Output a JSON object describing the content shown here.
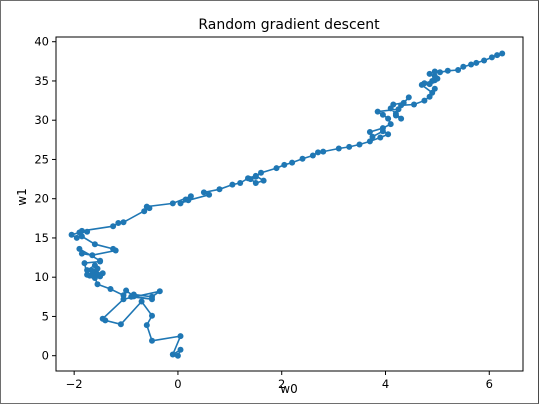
{
  "chart_data": {
    "type": "line",
    "title": "Random gradient descent",
    "xlabel": "w0",
    "ylabel": "w1",
    "xlim": [
      -2.35,
      6.65
    ],
    "ylim": [
      -1.95,
      40.6
    ],
    "xticks": [
      -2,
      0,
      2,
      4,
      6
    ],
    "yticks": [
      0,
      5,
      10,
      15,
      20,
      25,
      30,
      35,
      40
    ],
    "grid": false,
    "marker": "circle",
    "series": [
      {
        "color": "#1f77b4",
        "x": [
          0.0,
          0.05,
          -0.1,
          0.05,
          -0.5,
          -0.6,
          -0.5,
          -0.7,
          -1.1,
          -1.4,
          -1.45,
          -1.05,
          -0.35,
          -0.5,
          -0.85,
          -0.9,
          -0.5,
          -0.85,
          -1.0,
          -1.05,
          -1.3,
          -1.55,
          -1.6,
          -1.7,
          -1.6,
          -1.55,
          -1.45,
          -1.5,
          -1.65,
          -1.65,
          -1.55,
          -1.6,
          -1.75,
          -1.75,
          -1.8,
          -1.5,
          -1.5,
          -1.9,
          -1.85,
          -1.65,
          -1.2,
          -1.25,
          -1.6,
          -1.85,
          -1.95,
          -2.05,
          -1.9,
          -1.75,
          -1.85,
          -1.25,
          -1.15,
          -1.05,
          -0.55,
          -0.65,
          -0.6,
          -0.1,
          0.25,
          0.15,
          0.05,
          0.2,
          0.6,
          0.5,
          0.8,
          1.05,
          1.2,
          1.35,
          1.5,
          1.65,
          1.5,
          1.4,
          1.5,
          1.6,
          1.9,
          2.05,
          2.2,
          2.4,
          2.6,
          2.7,
          2.8,
          3.1,
          3.3,
          3.5,
          3.7,
          3.9,
          4.05,
          3.95,
          3.75,
          3.7,
          3.95,
          4.1,
          4.05,
          3.95,
          3.85,
          4.25,
          4.2,
          4.3,
          4.2,
          4.1,
          4.15,
          4.35,
          4.45,
          4.3,
          4.55,
          4.75,
          4.85,
          4.95,
          4.9,
          4.7,
          4.75,
          4.95,
          5.0,
          4.9,
          4.85,
          4.95,
          4.85,
          4.95,
          5.05,
          5.2,
          5.4,
          5.5,
          5.65,
          5.75,
          5.9,
          6.05,
          6.15,
          6.25
        ],
        "y": [
          0.0,
          0.75,
          0.15,
          2.5,
          1.9,
          3.9,
          5.1,
          6.9,
          4.0,
          4.5,
          4.7,
          7.2,
          8.2,
          7.5,
          7.8,
          7.5,
          7.2,
          7.55,
          8.3,
          7.7,
          8.5,
          9.1,
          9.9,
          10.2,
          10.6,
          10.4,
          10.5,
          10.1,
          10.2,
          10.8,
          11.1,
          11.5,
          10.9,
          10.3,
          11.8,
          12.0,
          12.1,
          13.6,
          13.0,
          12.8,
          13.4,
          13.6,
          14.2,
          15.2,
          15.0,
          15.4,
          15.7,
          15.8,
          15.9,
          16.5,
          16.9,
          17.0,
          18.8,
          18.4,
          19.0,
          19.4,
          20.3,
          19.9,
          19.4,
          19.8,
          20.5,
          20.8,
          21.2,
          21.8,
          22.0,
          22.6,
          22.9,
          22.3,
          22.0,
          22.5,
          22.8,
          23.3,
          23.9,
          24.3,
          24.6,
          25.1,
          25.5,
          25.9,
          26.0,
          26.4,
          26.6,
          26.9,
          27.3,
          27.8,
          28.2,
          28.6,
          27.9,
          28.5,
          29.0,
          29.5,
          30.2,
          30.7,
          31.1,
          31.4,
          30.6,
          30.2,
          30.8,
          31.5,
          32.0,
          32.2,
          32.9,
          31.9,
          32.0,
          32.5,
          33.0,
          34.0,
          33.5,
          34.5,
          34.7,
          35.1,
          35.3,
          35.0,
          34.6,
          35.6,
          35.9,
          36.2,
          36.1,
          36.3,
          36.4,
          36.8,
          37.1,
          37.3,
          37.6,
          38.0,
          38.3,
          38.5
        ]
      }
    ]
  }
}
